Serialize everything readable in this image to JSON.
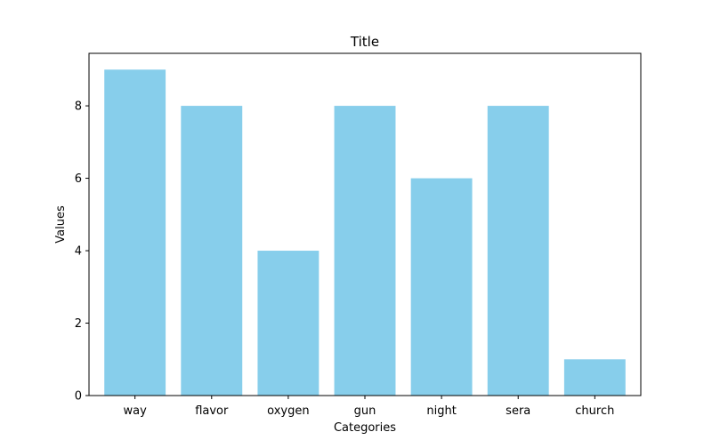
{
  "chart_data": {
    "type": "bar",
    "title": "Title",
    "xlabel": "Categories",
    "ylabel": "Values",
    "categories": [
      "way",
      "flavor",
      "oxygen",
      "gun",
      "night",
      "sera",
      "church"
    ],
    "values": [
      9,
      8,
      4,
      8,
      6,
      8,
      1
    ],
    "ylim": [
      0,
      9.45
    ],
    "yticks": [
      0,
      2,
      4,
      6,
      8
    ],
    "grid": false,
    "colors": {
      "bar": "#87ceeb",
      "axis": "#000000",
      "background": "#ffffff"
    }
  }
}
